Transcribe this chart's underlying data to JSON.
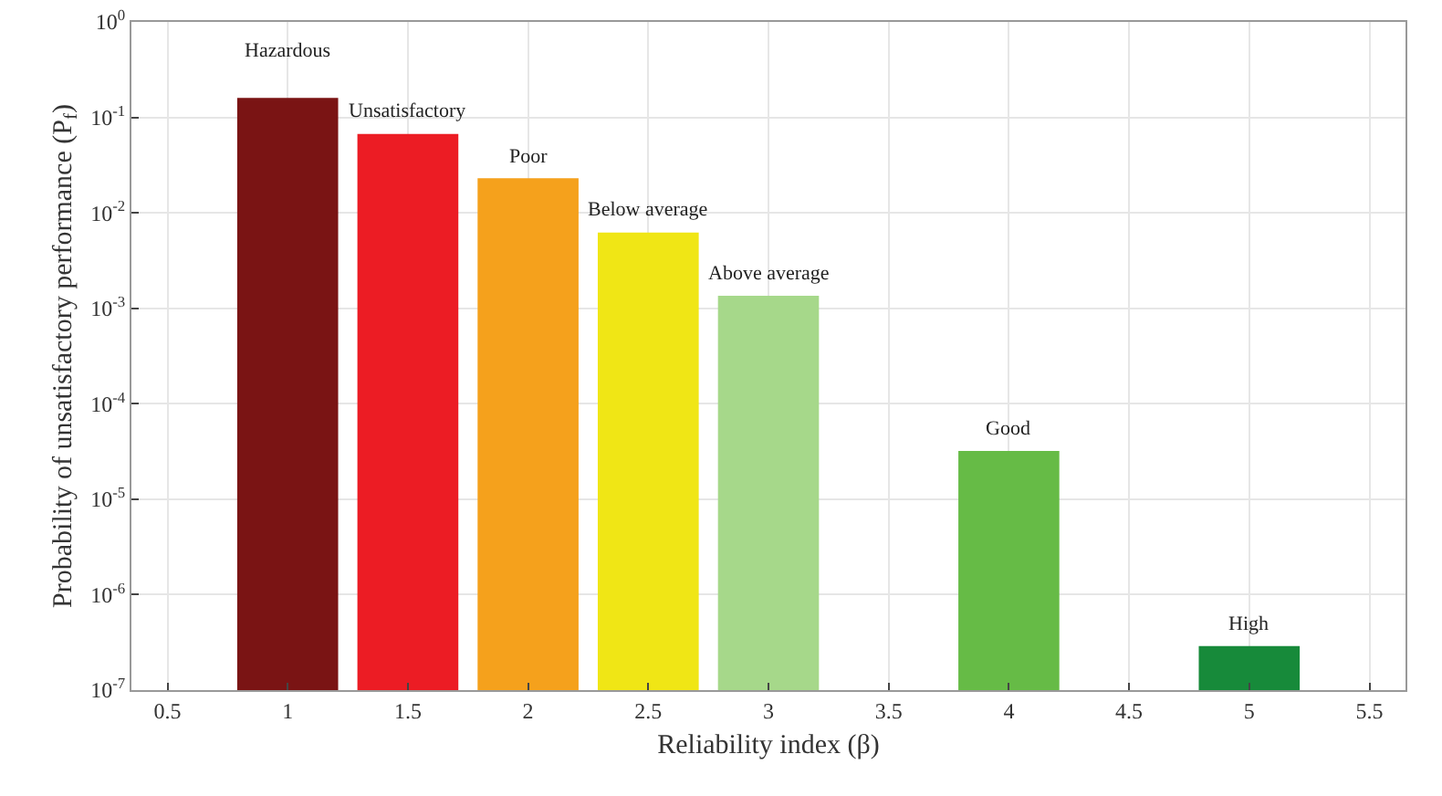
{
  "chart_data": {
    "type": "bar",
    "xlabel": "Reliability index (β)",
    "ylabel": "Probability of unsatisfactory performance (P$_{f}$)",
    "x": [
      1,
      1.5,
      2,
      2.5,
      3,
      4,
      5
    ],
    "values": [
      0.16,
      0.067,
      0.023,
      0.0062,
      0.00135,
      3.2e-05,
      2.9e-07
    ],
    "colors": [
      "#7a1414",
      "#ec1c24",
      "#f5a11c",
      "#f0e615",
      "#a6d88a",
      "#66bb46",
      "#178a3a"
    ],
    "log": "y",
    "grid": true,
    "xlim": [
      0.35,
      5.65
    ],
    "xticks": [
      0.5,
      1,
      1.5,
      2,
      2.5,
      3,
      3.5,
      4,
      4.5,
      5,
      5.5
    ],
    "ylim": [
      1e-07,
      1
    ],
    "yticks": [
      {
        "value": 1e-07,
        "label": "10$^{-7}$"
      },
      {
        "value": 1e-06,
        "label": "10$^{-6}$"
      },
      {
        "value": 1e-05,
        "label": "10$^{-5}$"
      },
      {
        "value": 0.0001,
        "label": "10$^{-4}$"
      },
      {
        "value": 0.001,
        "label": "10$^{-3}$"
      },
      {
        "value": 0.01,
        "label": "10$^{-2}$"
      },
      {
        "value": 0.1,
        "label": "10$^{-1}$"
      },
      {
        "value": 1,
        "label": "10$^{0}$"
      }
    ],
    "annotations": [
      {
        "text": "Hazardous",
        "x": 1,
        "y": 0.16
      },
      {
        "text": "Unsatisfactory",
        "x": 1.5,
        "y": 0.067
      },
      {
        "text": "Poor",
        "x": 2,
        "y": 0.023
      },
      {
        "text": "Below average",
        "x": 2.5,
        "y": 0.0062
      },
      {
        "text": "Above average",
        "x": 3,
        "y": 0.00135
      },
      {
        "text": "Good",
        "x": 4,
        "y": 3.2e-05
      },
      {
        "text": "High",
        "x": 5,
        "y": 2.9e-07
      }
    ]
  }
}
